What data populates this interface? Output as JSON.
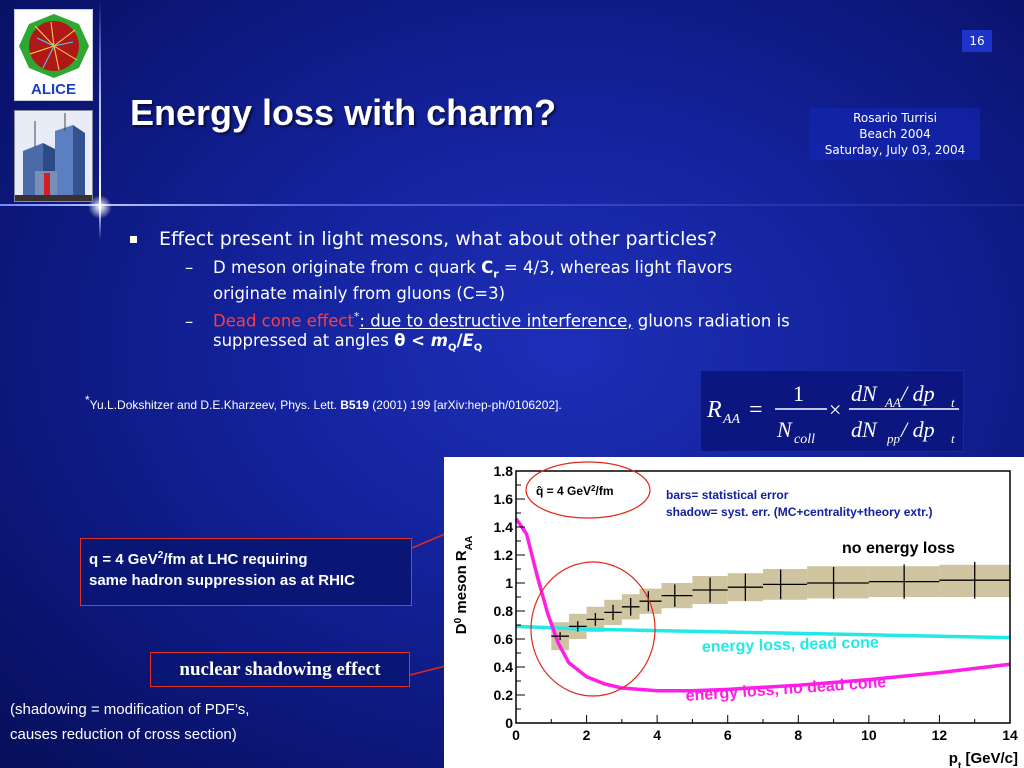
{
  "slide": {
    "page_number": "16",
    "title": "Energy loss with charm?",
    "logo_text": "ALICE",
    "author": {
      "name": "Rosario Turrisi",
      "event": "Beach 2004",
      "date": "Saturday, July 03, 2004"
    }
  },
  "bullets": {
    "main": "Effect present in light mesons, what about other particles?",
    "sub1_a": "D meson originate from c quark  ",
    "sub1_c": "C",
    "sub1_r": "r",
    "sub1_b": " = 4/3, whereas light flavors",
    "sub1_line2": "originate mainly from gluons (C=3)",
    "sub2_red": "Dead cone effect",
    "sub2_star": "*",
    "sub2_a": ": due to destructive interference,",
    "sub2_b": " gluons radiation is",
    "sub2_line2": "suppressed at angles  ",
    "sub2_theta": "θ",
    "sub2_lt": " < ",
    "sub2_m": "m",
    "sub2_q": "Q",
    "sub2_slash": "/",
    "sub2_e": "E",
    "sub2_q2": "Q"
  },
  "footnote": {
    "star": "*",
    "text_a": "Yu.L.Dokshitzer and D.E.Kharzeev, Phys. Lett. ",
    "volume": "B519",
    "text_b": " (2001) 199 [arXiv:hep-ph/0106202]."
  },
  "formula": {
    "lhs": "R",
    "lhs_sub": "AA",
    "equals": "=",
    "one": "1",
    "ncoll": "N",
    "ncoll_sub": "coll",
    "times": "×",
    "num": "dN",
    "num_sub": "AA",
    "num_rest": " / dp",
    "num_rest_sub": "t",
    "den": "dN",
    "den_sub": "pp",
    "den_rest": " / dp",
    "den_rest_sub": "t"
  },
  "annotations": {
    "qhat_line1": "q = 4 GeV",
    "qhat_sup": "2",
    "qhat_line1b": "/fm at LHC requiring",
    "qhat_line2": "same hadron suppression as at RHIC",
    "nuclear_shadowing": "nuclear shadowing effect",
    "shadowing_line1": "(shadowing = modification of PDF’s,",
    "shadowing_line2": "causes reduction of cross section)"
  },
  "chart_data": {
    "type": "line",
    "xlabel": "p",
    "xlabel_sub": "t",
    "xlabel_unit": " [GeV/c]",
    "ylabel": "D",
    "ylabel_sup": "0",
    "ylabel_rest": " meson R",
    "ylabel_sub": "AA",
    "xlim": [
      0,
      14
    ],
    "ylim": [
      0,
      1.8
    ],
    "x_ticks": [
      "0",
      "2",
      "4",
      "6",
      "8",
      "10",
      "12",
      "14"
    ],
    "y_ticks": [
      "0",
      "0.2",
      "0.4",
      "0.6",
      "0.8",
      "1",
      "1.2",
      "1.4",
      "1.6",
      "1.8"
    ],
    "x_tick_values": [
      0,
      2,
      4,
      6,
      8,
      10,
      12,
      14
    ],
    "y_tick_values": [
      0,
      0.2,
      0.4,
      0.6,
      0.8,
      1.0,
      1.2,
      1.4,
      1.6,
      1.8
    ],
    "qhat_label": "q̂ = 4 GeV",
    "qhat_sup": "2",
    "qhat_unit": "/fm",
    "legend_line1": "bars= statistical error",
    "legend_line2": "shadow= syst. err. (MC+centrality+theory extr.)",
    "colors": {
      "dead_cone": "#22e8e8",
      "no_dead_cone": "#ff1ee8",
      "band": "#cfc4a0",
      "points": "#000000"
    },
    "series": [
      {
        "name": "no energy loss",
        "kind": "points",
        "x": [
          1.25,
          1.75,
          2.25,
          2.75,
          3.25,
          3.75,
          4.5,
          5.5,
          6.5,
          7.5,
          9.0,
          11.0,
          13.0
        ],
        "y": [
          0.62,
          0.69,
          0.74,
          0.79,
          0.83,
          0.87,
          0.91,
          0.95,
          0.97,
          0.99,
          1.0,
          1.01,
          1.02
        ],
        "band_low": [
          0.52,
          0.6,
          0.65,
          0.7,
          0.74,
          0.78,
          0.82,
          0.85,
          0.87,
          0.88,
          0.89,
          0.9,
          0.9
        ],
        "band_high": [
          0.72,
          0.78,
          0.83,
          0.88,
          0.92,
          0.96,
          1.0,
          1.05,
          1.07,
          1.1,
          1.12,
          1.12,
          1.13
        ]
      },
      {
        "name": "energy loss, dead cone",
        "kind": "line",
        "x": [
          0,
          1,
          2,
          3,
          4,
          6,
          8,
          10,
          12,
          14
        ],
        "y": [
          0.69,
          0.68,
          0.67,
          0.665,
          0.66,
          0.65,
          0.64,
          0.63,
          0.62,
          0.61
        ]
      },
      {
        "name": "energy loss, no dead cone",
        "kind": "line",
        "x": [
          0,
          0.3,
          0.6,
          0.9,
          1.2,
          1.5,
          2.0,
          2.5,
          3.0,
          4.0,
          5.0,
          6.0,
          8.0,
          10.0,
          12.0,
          14.0
        ],
        "y": [
          1.46,
          1.35,
          1.05,
          0.78,
          0.57,
          0.43,
          0.33,
          0.28,
          0.25,
          0.23,
          0.23,
          0.24,
          0.27,
          0.31,
          0.36,
          0.42
        ]
      }
    ]
  }
}
